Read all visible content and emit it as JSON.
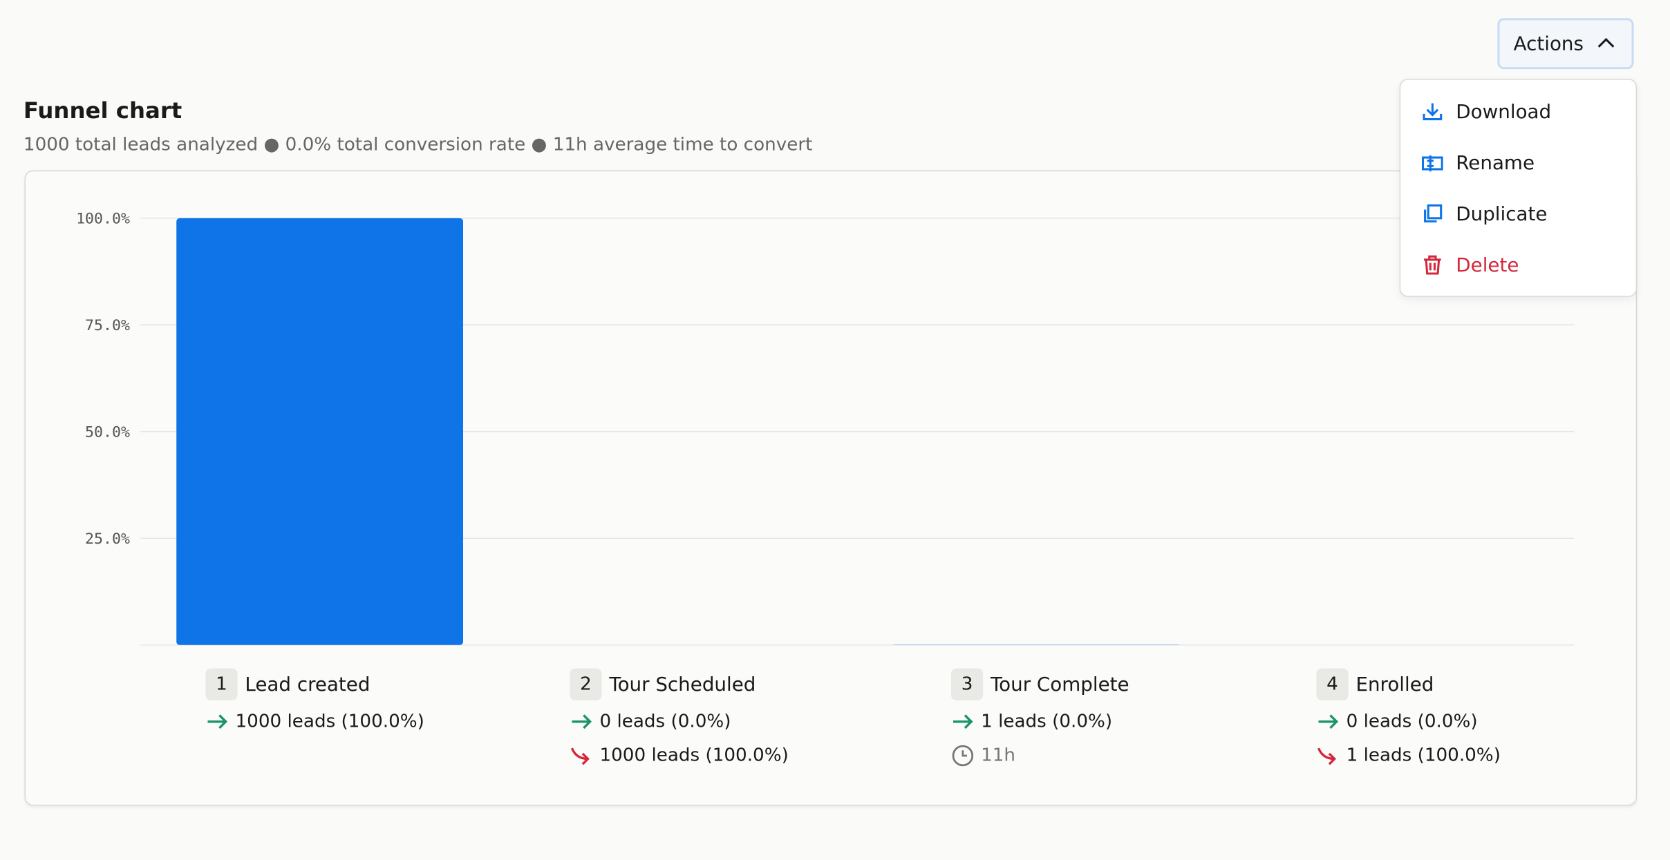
{
  "header": {
    "action_button": "Actions"
  },
  "menu": {
    "items": [
      {
        "label": "Download",
        "color": "#1a1a1a"
      },
      {
        "label": "Rename",
        "color": "#1a1a1a"
      },
      {
        "label": "Duplicate",
        "color": "#1a1a1a"
      },
      {
        "label": "Delete",
        "color": "#d4283c"
      }
    ]
  },
  "chart_data": {
    "type": "bar",
    "title": "Funnel chart",
    "subtitle": "1000 total leads analyzed ● 0.0% total conversion rate ● 11h average time to convert",
    "categories": [
      "Lead created",
      "Tour Scheduled",
      "Tour Complete",
      "Enrolled"
    ],
    "values": [
      100,
      0,
      0.1,
      0
    ],
    "color": "#0e74e8",
    "ylim": [
      0,
      100
    ],
    "yticks": [
      {
        "value": 25,
        "label": "25.0%"
      },
      {
        "value": 50,
        "label": "50.0%"
      },
      {
        "value": 75,
        "label": "75.0%"
      },
      {
        "value": 100,
        "label": "100.0%"
      }
    ],
    "grid": true,
    "steps": [
      {
        "number": "1",
        "converted": "1000 leads (100.0%)"
      },
      {
        "number": "2",
        "converted": "0 leads (0.0%)",
        "dropped": "1000 leads (100.0%)"
      },
      {
        "number": "3",
        "converted": "1 leads (0.0%)",
        "time": "11h"
      },
      {
        "number": "4",
        "converted": "0 leads (0.0%)",
        "dropped": "1 leads (100.0%)"
      }
    ]
  }
}
